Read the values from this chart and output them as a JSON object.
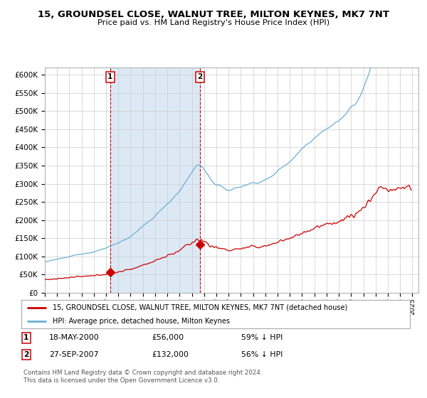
{
  "title": "15, GROUNDSEL CLOSE, WALNUT TREE, MILTON KEYNES, MK7 7NT",
  "subtitle": "Price paid vs. HM Land Registry's House Price Index (HPI)",
  "sale1_year": 2000,
  "sale1_month": 5,
  "sale1_price": 56000,
  "sale2_year": 2007,
  "sale2_month": 9,
  "sale2_price": 132000,
  "legend_line1": "15, GROUNDSEL CLOSE, WALNUT TREE, MILTON KEYNES, MK7 7NT (detached house)",
  "legend_line2": "HPI: Average price, detached house, Milton Keynes",
  "row1_num": "1",
  "row1_date": "18-MAY-2000",
  "row1_price": "£56,000",
  "row1_pct": "59% ↓ HPI",
  "row2_num": "2",
  "row2_date": "27-SEP-2007",
  "row2_price": "£132,000",
  "row2_pct": "56% ↓ HPI",
  "footer_line1": "Contains HM Land Registry data © Crown copyright and database right 2024.",
  "footer_line2": "This data is licensed under the Open Government Licence v3.0.",
  "hpi_color": "#6BAED6",
  "price_color": "#CC0000",
  "shading_color": "#DCE9F5",
  "grid_color": "#CCCCCC",
  "ylim_max": 620000,
  "ytick_step": 50000,
  "xmin": 1995.0,
  "xmax": 2025.5
}
